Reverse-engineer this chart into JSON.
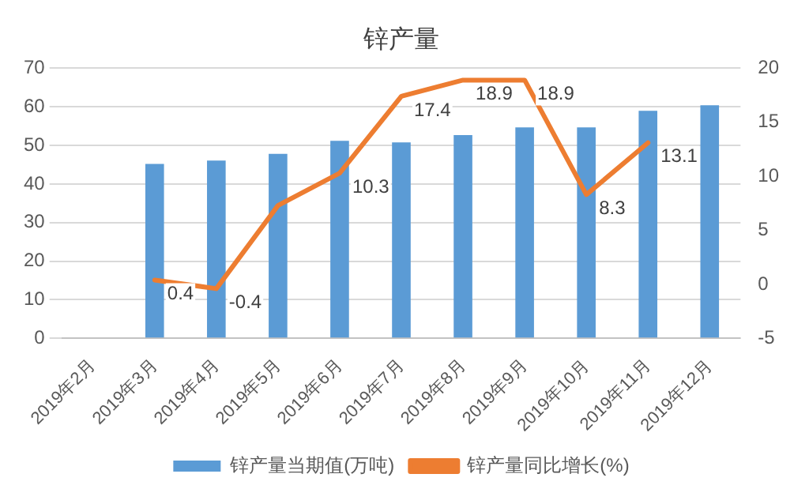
{
  "chart_data": {
    "type": "bar",
    "title": "锌产量",
    "categories": [
      "2019年2月",
      "2019年3月",
      "2019年4月",
      "2019年5月",
      "2019年6月",
      "2019年7月",
      "2019年8月",
      "2019年9月",
      "2019年10月",
      "2019年11月",
      "2019年12月"
    ],
    "series": [
      {
        "name": "锌产量当期值(万吨)",
        "color": "#5b9bd5",
        "values": [
          null,
          45.2,
          46.1,
          47.8,
          51.2,
          50.8,
          52.7,
          54.7,
          54.7,
          59.0,
          60.4
        ]
      },
      {
        "name": "锌产量同比增长(%)",
        "type": "line",
        "axis": "y2",
        "color": "#ed7d31",
        "marker": "none",
        "values": [
          null,
          0.4,
          -0.4,
          7.3,
          10.3,
          17.4,
          18.9,
          18.9,
          8.3,
          13.1,
          null
        ],
        "value_labels": [
          null,
          "0.4",
          "-0.4",
          null,
          "10.3",
          "17.4",
          "18.9",
          "18.9",
          "8.3",
          "13.1",
          null
        ]
      }
    ],
    "ylim": [
      0,
      70
    ],
    "yticks": [
      0,
      10,
      20,
      30,
      40,
      50,
      60,
      70
    ],
    "y2lim": [
      -5,
      20
    ],
    "y2ticks": [
      -5,
      0,
      5,
      10,
      15,
      20
    ],
    "grid": "y",
    "legend": "bottom"
  }
}
